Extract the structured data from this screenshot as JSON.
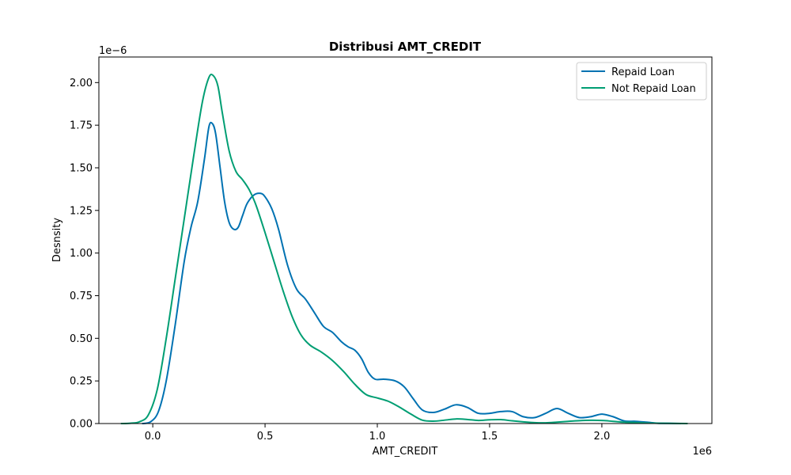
{
  "chart_data": {
    "type": "line",
    "title": "Distribusi AMT_CREDIT",
    "xlabel": "AMT_CREDIT",
    "ylabel": "Desnsity",
    "x_offset_label": "1e6",
    "y_offset_label": "1e−6",
    "xlim": [
      -240000,
      2490000
    ],
    "ylim": [
      0,
      2.15e-06
    ],
    "x_ticks": [
      0,
      500000,
      1000000,
      1500000,
      2000000
    ],
    "x_tick_labels": [
      "0.0",
      "0.5",
      "1.0",
      "1.5",
      "2.0"
    ],
    "y_ticks": [
      0,
      2.5e-07,
      5e-07,
      7.5e-07,
      1e-06,
      1.25e-06,
      1.5e-06,
      1.75e-06,
      2e-06
    ],
    "y_tick_labels": [
      "0.00",
      "0.25",
      "0.50",
      "0.75",
      "1.00",
      "1.25",
      "1.50",
      "1.75",
      "2.00"
    ],
    "grid": false,
    "legend_position": "top-right",
    "series": [
      {
        "name": "Repaid Loan",
        "color": "#0072b2",
        "x": [
          -45000,
          -10000,
          25000,
          60000,
          100000,
          140000,
          170000,
          200000,
          230000,
          250000,
          265000,
          280000,
          300000,
          320000,
          340000,
          360000,
          380000,
          400000,
          420000,
          450000,
          480000,
          500000,
          530000,
          560000,
          600000,
          640000,
          680000,
          720000,
          760000,
          800000,
          840000,
          870000,
          900000,
          930000,
          960000,
          990000,
          1030000,
          1080000,
          1120000,
          1160000,
          1200000,
          1250000,
          1300000,
          1350000,
          1400000,
          1450000,
          1500000,
          1550000,
          1600000,
          1650000,
          1700000,
          1750000,
          1800000,
          1850000,
          1900000,
          1950000,
          2000000,
          2050000,
          2100000,
          2150000,
          2200000,
          2250000,
          2300000,
          2350000
        ],
        "y": [
          0,
          1e-08,
          7e-08,
          2.5e-07,
          5.8e-07,
          9.5e-07,
          1.15e-06,
          1.3e-06,
          1.55e-06,
          1.74e-06,
          1.76e-06,
          1.7e-06,
          1.5e-06,
          1.3e-06,
          1.18e-06,
          1.14e-06,
          1.15e-06,
          1.22e-06,
          1.29e-06,
          1.34e-06,
          1.35e-06,
          1.33e-06,
          1.26e-06,
          1.14e-06,
          9.3e-07,
          7.9e-07,
          7.3e-07,
          6.5e-07,
          5.7e-07,
          5.35e-07,
          4.8e-07,
          4.5e-07,
          4.3e-07,
          3.8e-07,
          3e-07,
          2.6e-07,
          2.6e-07,
          2.5e-07,
          2.15e-07,
          1.45e-07,
          8e-08,
          6.5e-08,
          8.5e-08,
          1.1e-07,
          9.5e-08,
          6e-08,
          6e-08,
          7e-08,
          7e-08,
          4e-08,
          3.5e-08,
          6e-08,
          8.8e-08,
          6e-08,
          3.5e-08,
          4e-08,
          5.5e-08,
          4e-08,
          1.5e-08,
          1.3e-08,
          8e-09,
          2e-09,
          1e-09,
          0
        ]
      },
      {
        "name": "Not Repaid Loan",
        "color": "#009e73",
        "x": [
          -140000,
          -100000,
          -60000,
          -20000,
          20000,
          60000,
          100000,
          140000,
          180000,
          220000,
          250000,
          270000,
          290000,
          310000,
          340000,
          370000,
          400000,
          430000,
          460000,
          500000,
          540000,
          580000,
          620000,
          660000,
          700000,
          750000,
          800000,
          850000,
          900000,
          950000,
          1000000,
          1050000,
          1100000,
          1150000,
          1200000,
          1250000,
          1300000,
          1350000,
          1400000,
          1450000,
          1500000,
          1550000,
          1600000,
          1650000,
          1700000,
          1750000,
          1800000,
          1850000,
          1900000,
          1950000,
          2000000,
          2050000,
          2100000,
          2150000,
          2200000,
          2250000,
          2300000,
          2380000
        ],
        "y": [
          0,
          2e-09,
          1e-08,
          5e-08,
          2e-07,
          5e-07,
          8.5e-07,
          1.2e-06,
          1.55e-06,
          1.88e-06,
          2.03e-06,
          2.04e-06,
          1.98e-06,
          1.82e-06,
          1.6e-06,
          1.48e-06,
          1.43e-06,
          1.37e-06,
          1.28e-06,
          1.12e-06,
          9.5e-07,
          7.8e-07,
          6.3e-07,
          5.2e-07,
          4.6e-07,
          4.2e-07,
          3.7e-07,
          3.05e-07,
          2.3e-07,
          1.7e-07,
          1.5e-07,
          1.3e-07,
          9.5e-08,
          5.5e-08,
          2e-08,
          1.4e-08,
          2e-08,
          2.7e-08,
          2.4e-08,
          1.8e-08,
          2.2e-08,
          2.3e-08,
          1.6e-08,
          1e-08,
          5e-09,
          4e-09,
          8e-09,
          1.3e-08,
          1.7e-08,
          1.9e-08,
          1.8e-08,
          1.3e-08,
          8e-09,
          6e-09,
          3e-09,
          2e-09,
          1e-09,
          0
        ]
      }
    ]
  }
}
